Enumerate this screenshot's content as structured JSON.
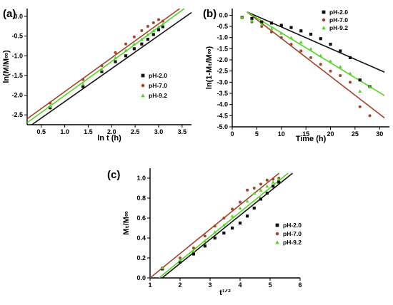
{
  "colors": {
    "pH-2.0": "#111111",
    "pH-7.0": "#a0442a",
    "pH-9.2": "#55d424"
  },
  "chart_data": [
    {
      "panel": "(a)",
      "type": "scatter",
      "xlabel": "ln t (h)",
      "ylabel": "ln(M/M∞)",
      "xlim": [
        0.2,
        3.7
      ],
      "ylim": [
        -2.75,
        0.2
      ],
      "xticks": [
        0.5,
        1.0,
        1.5,
        2.0,
        2.5,
        3.0,
        3.5
      ],
      "xtick_labels": [
        "0.5",
        "1.0",
        "1.5",
        "2.0",
        "2.5",
        "3.0",
        "3.5"
      ],
      "yticks": [
        0.0,
        -0.5,
        -1.0,
        -1.5,
        -2.0,
        -2.5
      ],
      "ytick_labels": [
        "0.0",
        "-0.5",
        "-1.0",
        "-1.5",
        "-2.0",
        "-2.5"
      ],
      "legend_position": "center-right",
      "series": [
        {
          "name": "pH-2.0",
          "marker": "square",
          "color_key": "pH-2.0",
          "x": [
            0.69,
            1.39,
            1.79,
            2.08,
            2.3,
            2.48,
            2.64,
            2.77,
            2.89,
            3.0,
            3.09
          ],
          "y": [
            -2.32,
            -1.78,
            -1.4,
            -1.15,
            -1.0,
            -0.82,
            -0.7,
            -0.58,
            -0.46,
            -0.34,
            -0.26
          ],
          "fit": {
            "x": [
              0.3,
              3.7
            ],
            "y": [
              -2.75,
              0.1
            ]
          }
        },
        {
          "name": "pH-7.0",
          "marker": "circle",
          "color_key": "pH-7.0",
          "x": [
            0.69,
            1.39,
            1.79,
            2.08,
            2.3,
            2.48,
            2.64,
            2.77,
            2.89,
            3.0,
            3.09
          ],
          "y": [
            -2.2,
            -1.6,
            -1.25,
            -0.92,
            -0.7,
            -0.52,
            -0.36,
            -0.25,
            -0.16,
            -0.08,
            -0.12
          ],
          "fit": {
            "x": [
              0.2,
              3.45
            ],
            "y": [
              -2.6,
              0.2
            ]
          }
        },
        {
          "name": "pH-9.2",
          "marker": "triangle",
          "color_key": "pH-9.2",
          "x": [
            0.69,
            1.39,
            1.79,
            2.08,
            2.3,
            2.48,
            2.64,
            2.77,
            2.89,
            3.0,
            3.09
          ],
          "y": [
            -2.28,
            -1.72,
            -1.35,
            -1.05,
            -0.86,
            -0.7,
            -0.58,
            -0.46,
            -0.36,
            -0.26,
            -0.2
          ],
          "fit": {
            "x": [
              0.2,
              3.55
            ],
            "y": [
              -2.7,
              0.2
            ]
          }
        }
      ]
    },
    {
      "panel": "(b)",
      "type": "scatter",
      "xlabel": "Time (h)",
      "ylabel": "ln(1-Mₜ/M∞)",
      "xlim": [
        0,
        32
      ],
      "ylim": [
        -5.0,
        0.3
      ],
      "xticks": [
        0,
        5,
        10,
        15,
        20,
        25,
        30
      ],
      "xtick_labels": [
        "0",
        "5",
        "10",
        "15",
        "20",
        "25",
        "30"
      ],
      "yticks": [
        0.0,
        -0.5,
        -1.0,
        -1.5,
        -2.0,
        -2.5,
        -3.0,
        -3.5,
        -4.0,
        -4.5,
        -5.0
      ],
      "ytick_labels": [
        "0.0",
        "-0.5",
        "-1.0",
        "-1.5",
        "-2.0",
        "-2.5",
        "-3.0",
        "-3.5",
        "-4.0",
        "-4.5",
        "-5.0"
      ],
      "legend_position": "top-right",
      "series": [
        {
          "name": "pH-2.0",
          "marker": "square",
          "color_key": "pH-2.0",
          "x": [
            2,
            4,
            6,
            8,
            10,
            12,
            14,
            16,
            18,
            20,
            22,
            24,
            26,
            28
          ],
          "y": [
            -0.1,
            -0.15,
            -0.3,
            -0.35,
            -0.45,
            -0.55,
            -0.7,
            -0.85,
            -1.05,
            -1.3,
            -1.6,
            -1.9,
            -2.9,
            -3.2
          ],
          "fit": {
            "x": [
              3,
              31
            ],
            "y": [
              0.15,
              -2.55
            ]
          }
        },
        {
          "name": "pH-7.0",
          "marker": "circle",
          "color_key": "pH-7.0",
          "x": [
            2,
            4,
            6,
            8,
            10,
            12,
            14,
            16,
            18,
            20,
            22,
            24,
            26,
            28
          ],
          "y": [
            -0.12,
            -0.3,
            -0.5,
            -0.75,
            -1.0,
            -1.3,
            -1.6,
            -1.9,
            -2.2,
            -2.5,
            -2.7,
            -3.0,
            -4.1,
            -4.5
          ],
          "fit": {
            "x": [
              3,
              31
            ],
            "y": [
              0.15,
              -4.6
            ]
          }
        },
        {
          "name": "pH-9.2",
          "marker": "triangle",
          "color_key": "pH-9.2",
          "x": [
            2,
            4,
            6,
            8,
            10,
            12,
            14,
            16,
            18,
            20,
            22,
            24,
            26,
            28
          ],
          "y": [
            -0.1,
            -0.25,
            -0.4,
            -0.6,
            -0.8,
            -1.0,
            -1.2,
            -1.5,
            -1.8,
            -2.05,
            -2.3,
            -2.6,
            -3.4,
            -3.2
          ],
          "fit": {
            "x": [
              3,
              31
            ],
            "y": [
              0.15,
              -3.6
            ]
          }
        }
      ]
    },
    {
      "panel": "(c)",
      "type": "scatter",
      "xlabel": "t¹ᐟ²",
      "ylabel": "Mₜ/M∞",
      "xlim": [
        1,
        6
      ],
      "ylim": [
        0,
        1.1
      ],
      "xticks": [
        1,
        2,
        3,
        4,
        5,
        6
      ],
      "xtick_labels": [
        "1",
        "2",
        "3",
        "4",
        "5",
        "6"
      ],
      "yticks": [
        0.0,
        0.2,
        0.4,
        0.6,
        0.8,
        1.0
      ],
      "ytick_labels": [
        "0.0",
        "0.2",
        "0.4",
        "0.6",
        "0.8",
        "1.0"
      ],
      "legend_position": "center-right",
      "series": [
        {
          "name": "pH-2.0",
          "marker": "square",
          "color_key": "pH-2.0",
          "x": [
            1.41,
            2.0,
            2.45,
            2.83,
            3.16,
            3.46,
            3.74,
            4.0,
            4.24,
            4.47,
            4.69,
            4.9,
            5.1,
            5.29
          ],
          "y": [
            0.09,
            0.16,
            0.24,
            0.32,
            0.4,
            0.45,
            0.5,
            0.55,
            0.62,
            0.7,
            0.79,
            0.85,
            0.92,
            0.96
          ],
          "fit": {
            "x": [
              1.4,
              5.75
            ],
            "y": [
              0.0,
              1.05
            ]
          }
        },
        {
          "name": "pH-7.0",
          "marker": "circle",
          "color_key": "pH-7.0",
          "x": [
            1.41,
            2.0,
            2.45,
            2.83,
            3.16,
            3.46,
            3.74,
            4.0,
            4.24,
            4.47,
            4.69,
            4.9,
            5.1,
            5.29
          ],
          "y": [
            0.1,
            0.2,
            0.3,
            0.42,
            0.52,
            0.6,
            0.69,
            0.76,
            0.88,
            0.9,
            0.94,
            0.98,
            0.99,
            1.0
          ],
          "fit": {
            "x": [
              1.0,
              5.3
            ],
            "y": [
              0.0,
              1.05
            ]
          }
        },
        {
          "name": "pH-9.2",
          "marker": "triangle",
          "color_key": "pH-9.2",
          "x": [
            1.41,
            2.0,
            2.45,
            2.83,
            3.16,
            3.46,
            3.74,
            4.0,
            4.24,
            4.47,
            4.69,
            4.9,
            5.1,
            5.29
          ],
          "y": [
            0.1,
            0.18,
            0.27,
            0.37,
            0.46,
            0.53,
            0.62,
            0.7,
            0.77,
            0.85,
            0.88,
            0.92,
            0.96,
            0.99
          ],
          "fit": {
            "x": [
              1.3,
              5.6
            ],
            "y": [
              0.0,
              1.05
            ]
          }
        }
      ]
    }
  ]
}
